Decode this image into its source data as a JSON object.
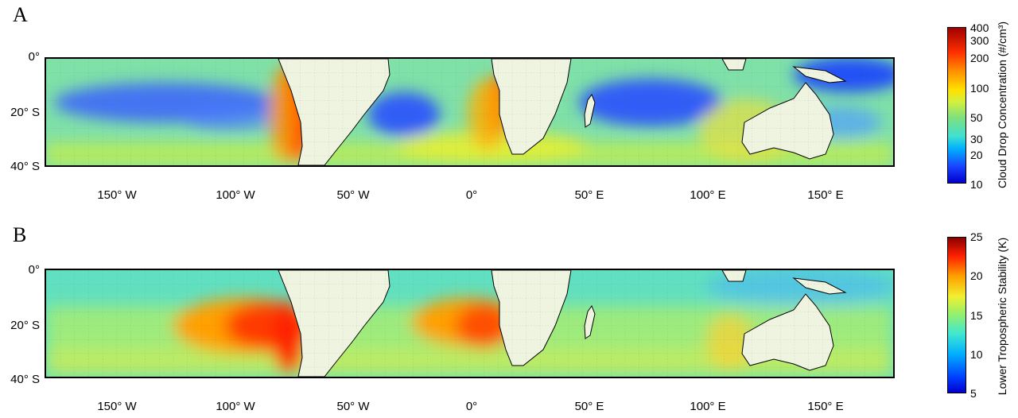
{
  "panels": [
    {
      "letter": "A",
      "colorbar_label": "Cloud Drop Concentration (#/cm³)",
      "colorbar_ticks": [
        "400",
        "300",
        "200",
        "100",
        "50",
        "30",
        "20",
        "10"
      ]
    },
    {
      "letter": "B",
      "colorbar_label": "Lower Tropospheric Stability (K)",
      "colorbar_ticks": [
        "25",
        "20",
        "15",
        "10",
        "5"
      ]
    }
  ],
  "latitude_labels": [
    "0°",
    "20° S",
    "40° S"
  ],
  "longitude_labels": [
    "150° W",
    "100° W",
    "50° W",
    "0°",
    "50° E",
    "100° E",
    "150° E"
  ],
  "chart_data": [
    {
      "type": "heatmap",
      "title": "",
      "panel": "A",
      "x_range": [
        -180,
        180
      ],
      "y_range": [
        0,
        -40
      ],
      "colorbar": {
        "label": "Cloud Drop Concentration (#/cm³)",
        "scale": "log",
        "range": [
          10,
          400
        ],
        "ticks": [
          10,
          20,
          30,
          50,
          100,
          200,
          300,
          400
        ]
      },
      "description_regions": [
        {
          "region": "off Peru/Chile coast",
          "value_level": "high",
          "approx_value": 300
        },
        {
          "region": "off Namibia/Angola coast",
          "value_level": "high",
          "approx_value": 250
        },
        {
          "region": "central South Pacific",
          "value_level": "low",
          "approx_value": 20
        },
        {
          "region": "South Atlantic east of Brazil",
          "value_level": "low",
          "approx_value": 20
        },
        {
          "region": "Indian Ocean tropics",
          "value_level": "low",
          "approx_value": 20
        },
        {
          "region": "western tropical Pacific",
          "value_level": "low",
          "approx_value": 15
        }
      ]
    },
    {
      "type": "heatmap",
      "title": "",
      "panel": "B",
      "x_range": [
        -180,
        180
      ],
      "y_range": [
        0,
        -40
      ],
      "colorbar": {
        "label": "Lower Tropospheric Stability (K)",
        "scale": "linear",
        "range": [
          5,
          25
        ],
        "ticks": [
          5,
          10,
          15,
          20,
          25
        ]
      },
      "description_regions": [
        {
          "region": "off Peru/Chile coast",
          "value_level": "high",
          "approx_value": 22
        },
        {
          "region": "off Namibia/Angola coast",
          "value_level": "high",
          "approx_value": 21
        },
        {
          "region": "western tropical Pacific",
          "value_level": "low",
          "approx_value": 11
        },
        {
          "region": "off western Australia",
          "value_level": "moderate-high",
          "approx_value": 18
        }
      ]
    }
  ]
}
